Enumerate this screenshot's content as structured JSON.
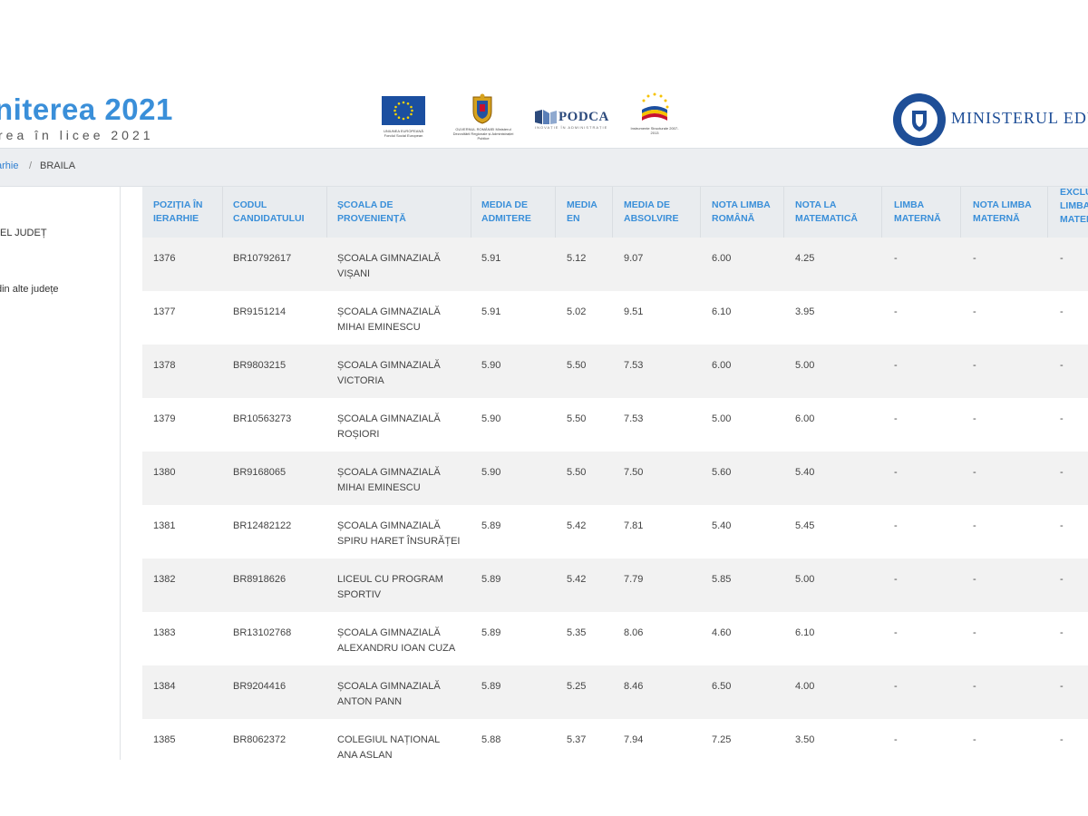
{
  "header": {
    "title": "niterea 2021",
    "subtitle": "rea în licee 2021",
    "ministry": "MINISTERUL EDU",
    "podca": "PODCA",
    "podca_tagline": "INOVAȚIE ÎN ADMINISTRAȚIE",
    "logo_eu_caption": "UNIUNEA EUROPEANĂ Fondul Social European",
    "logo_gov_caption": "GUVERNUL ROMÂNIEI Ministerul Dezvoltării Regionale și Administrației Publice",
    "logo_is_caption": "Instrumente Structurale 2007-2013"
  },
  "breadcrumb": {
    "link": "arhie",
    "separator": "/",
    "current": "BRAILA"
  },
  "sidebar": {
    "items": [
      "EL JUDEȚ",
      "din alte județe"
    ]
  },
  "table": {
    "headers": [
      [
        "POZIȚIA ÎN",
        "IERARHIE"
      ],
      [
        "CODUL",
        "CANDIDATULUI"
      ],
      [
        "ȘCOALA DE",
        "PROVENIENȚĂ"
      ],
      [
        "MEDIA DE",
        "ADMITERE"
      ],
      [
        "MEDIA",
        "EN"
      ],
      [
        "MEDIA DE",
        "ABSOLVIRE"
      ],
      [
        "NOTA LIMBA",
        "ROMÂNĂ"
      ],
      [
        "NOTA LA",
        "MATEMATICĂ"
      ],
      [
        "LIMBA",
        "MATERNĂ"
      ],
      [
        "NOTA LIMBA",
        "MATERNĂ"
      ],
      [
        "EXCLU",
        "LIMBA",
        "MATER"
      ]
    ],
    "rows": [
      {
        "pos": "1376",
        "code": "BR10792617",
        "school": [
          "ȘCOALA GIMNAZIALĂ",
          "VIȘANI"
        ],
        "adm": "5.91",
        "en": "5.12",
        "abs": "9.07",
        "ro": "6.00",
        "mat": "4.25",
        "lm": "-",
        "nlm": "-",
        "ex": "-"
      },
      {
        "pos": "1377",
        "code": "BR9151214",
        "school": [
          "ȘCOALA GIMNAZIALĂ",
          "MIHAI EMINESCU"
        ],
        "adm": "5.91",
        "en": "5.02",
        "abs": "9.51",
        "ro": "6.10",
        "mat": "3.95",
        "lm": "-",
        "nlm": "-",
        "ex": "-"
      },
      {
        "pos": "1378",
        "code": "BR9803215",
        "school": [
          "ȘCOALA GIMNAZIALĂ",
          "VICTORIA"
        ],
        "adm": "5.90",
        "en": "5.50",
        "abs": "7.53",
        "ro": "6.00",
        "mat": "5.00",
        "lm": "-",
        "nlm": "-",
        "ex": "-"
      },
      {
        "pos": "1379",
        "code": "BR10563273",
        "school": [
          "ȘCOALA GIMNAZIALĂ",
          "ROȘIORI"
        ],
        "adm": "5.90",
        "en": "5.50",
        "abs": "7.53",
        "ro": "5.00",
        "mat": "6.00",
        "lm": "-",
        "nlm": "-",
        "ex": "-"
      },
      {
        "pos": "1380",
        "code": "BR9168065",
        "school": [
          "ȘCOALA GIMNAZIALĂ",
          "MIHAI EMINESCU"
        ],
        "adm": "5.90",
        "en": "5.50",
        "abs": "7.50",
        "ro": "5.60",
        "mat": "5.40",
        "lm": "-",
        "nlm": "-",
        "ex": "-"
      },
      {
        "pos": "1381",
        "code": "BR12482122",
        "school": [
          "ȘCOALA GIMNAZIALĂ",
          "SPIRU HARET ÎNSURĂȚEI"
        ],
        "adm": "5.89",
        "en": "5.42",
        "abs": "7.81",
        "ro": "5.40",
        "mat": "5.45",
        "lm": "-",
        "nlm": "-",
        "ex": "-"
      },
      {
        "pos": "1382",
        "code": "BR8918626",
        "school": [
          "LICEUL CU PROGRAM",
          "SPORTIV"
        ],
        "adm": "5.89",
        "en": "5.42",
        "abs": "7.79",
        "ro": "5.85",
        "mat": "5.00",
        "lm": "-",
        "nlm": "-",
        "ex": "-"
      },
      {
        "pos": "1383",
        "code": "BR13102768",
        "school": [
          "ȘCOALA GIMNAZIALĂ",
          "ALEXANDRU IOAN CUZA"
        ],
        "adm": "5.89",
        "en": "5.35",
        "abs": "8.06",
        "ro": "4.60",
        "mat": "6.10",
        "lm": "-",
        "nlm": "-",
        "ex": "-"
      },
      {
        "pos": "1384",
        "code": "BR9204416",
        "school": [
          "ȘCOALA GIMNAZIALĂ",
          "ANTON PANN"
        ],
        "adm": "5.89",
        "en": "5.25",
        "abs": "8.46",
        "ro": "6.50",
        "mat": "4.00",
        "lm": "-",
        "nlm": "-",
        "ex": "-"
      },
      {
        "pos": "1385",
        "code": "BR8062372",
        "school": [
          "COLEGIUL NAȚIONAL",
          "ANA ASLAN"
        ],
        "adm": "5.88",
        "en": "5.37",
        "abs": "7.94",
        "ro": "7.25",
        "mat": "3.50",
        "lm": "-",
        "nlm": "-",
        "ex": "-"
      }
    ]
  },
  "colors": {
    "accent": "#3a8fd9",
    "stripe": "#f2f2f2",
    "header_bg": "#e9ecef",
    "ministry_blue": "#1e4e97"
  },
  "icons": [
    "eu-flag-icon",
    "romania-coat-of-arms-icon",
    "podca-logo-icon",
    "instrumente-structurale-icon",
    "government-seal-icon"
  ]
}
